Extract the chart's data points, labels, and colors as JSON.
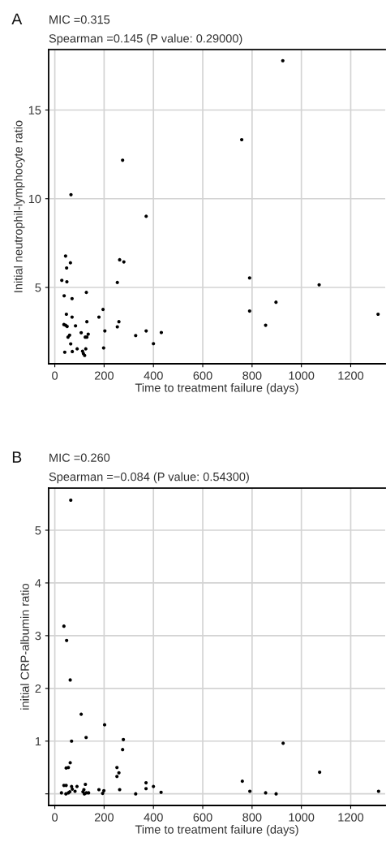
{
  "chart_data": [
    {
      "type": "scatter",
      "title": "MIC =0.315",
      "subtitle": "Spearman =0.145 (P value: 0.29000)",
      "annotations": [
        "A"
      ],
      "xlabel": "Time to treatment failure (days)",
      "ylabel": "Initial neutrophil-lymphocyte ratio",
      "xlim": [
        -25,
        1340
      ],
      "ylim": [
        0.7,
        18.4
      ],
      "xticks": [
        0,
        200,
        400,
        600,
        800,
        1000,
        1200
      ],
      "yticks": [
        5,
        10,
        15
      ],
      "grid": true,
      "marker": "circle",
      "legend": false,
      "series": [
        {
          "color": "#000000",
          "x": [
            65.6,
            43.7,
            63.4,
            48,
            28.4,
            49,
            263,
            280,
            253.6,
            370.5,
            38,
            70,
            128,
            47,
            70,
            195.6,
            179,
            37,
            43.7,
            50,
            84,
            130,
            260,
            253.6,
            203,
            370.5,
            432,
            328,
            107,
            60,
            53.6,
            123.5,
            130,
            135.5,
            64.5,
            400,
            40.4,
            71,
            90.7,
            125.7,
            112.6,
            116,
            121,
            198,
            790,
            790,
            855,
            897,
            1072,
            1311,
            924.6,
            758,
            275
          ],
          "values": [
            10.23,
            6.77,
            6.39,
            6.1,
            5.4,
            5.32,
            6.56,
            6.44,
            5.28,
            9.01,
            4.53,
            4.37,
            4.72,
            3.49,
            3.33,
            3.76,
            3.33,
            2.91,
            2.87,
            2.8,
            2.84,
            3.07,
            3.07,
            2.78,
            2.55,
            2.55,
            2.46,
            2.29,
            2.45,
            2.31,
            2.2,
            2.2,
            2.2,
            2.37,
            1.82,
            1.83,
            1.35,
            1.39,
            1.54,
            1.54,
            1.41,
            1.27,
            1.17,
            1.59,
            5.54,
            3.67,
            2.87,
            4.17,
            5.15,
            3.49,
            17.78,
            13.33,
            12.17
          ]
        }
      ]
    },
    {
      "type": "scatter",
      "title": "MIC =0.260",
      "subtitle": "Spearman =−0.084 (P value: 0.54300)",
      "annotations": [
        "B"
      ],
      "xlabel": "Time to treatment failure (days)",
      "ylabel": "initial CRP-albumin ratio",
      "xlim": [
        -25,
        1340
      ],
      "ylim": [
        -0.22,
        5.8
      ],
      "xticks": [
        0,
        200,
        400,
        600,
        800,
        1000,
        1200
      ],
      "yticks": [
        {
          "value": 0,
          "label": null
        },
        1,
        2,
        3,
        4,
        5
      ],
      "grid": true,
      "marker": "circle",
      "legend": false,
      "series": [
        {
          "color": "#000000",
          "x": [
            64.7,
            37,
            48,
            62.5,
            107,
            202,
            68,
            127,
            278,
            275,
            926,
            62.5,
            46,
            55,
            252,
            260,
            252,
            1074,
            760.5,
            370,
            370,
            400,
            431,
            328,
            263,
            179,
            199,
            194,
            124,
            90,
            82,
            68,
            71,
            37,
            46,
            27,
            45,
            55,
            61,
            114,
            120,
            128,
            137,
            118,
            791,
            855,
            897.5,
            1313
          ],
          "values": [
            5.57,
            3.18,
            2.91,
            2.16,
            1.51,
            1.31,
            1.0,
            1.07,
            1.03,
            0.84,
            0.96,
            0.59,
            0.49,
            0.5,
            0.5,
            0.4,
            0.33,
            0.41,
            0.24,
            0.21,
            0.1,
            0.14,
            0.03,
            0.0,
            0.08,
            0.08,
            0.06,
            0.01,
            0.18,
            0.14,
            0.05,
            0.14,
            0.09,
            0.16,
            0.16,
            0.02,
            0.0,
            0.02,
            0.04,
            0.04,
            0.0,
            0.02,
            0.02,
            0.08,
            0.05,
            0.02,
            0.0,
            0.05
          ]
        }
      ]
    }
  ]
}
